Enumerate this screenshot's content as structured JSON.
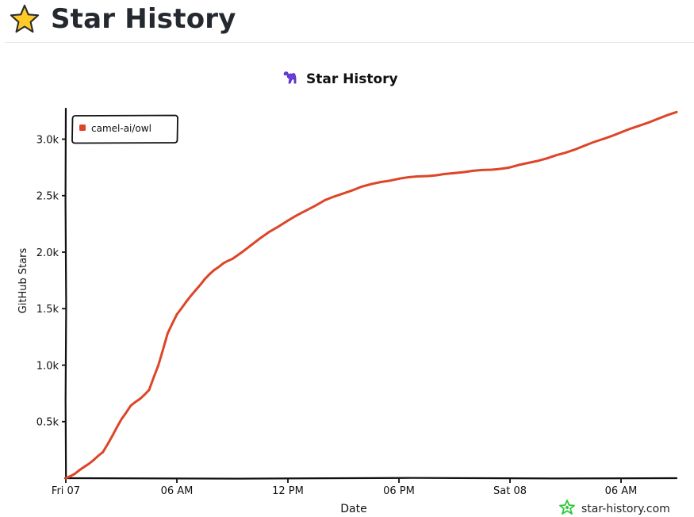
{
  "page": {
    "title": "Star History",
    "title_icon": "star-icon"
  },
  "chart_data": {
    "type": "line",
    "title": "Star History",
    "title_icon": "camel-icon",
    "xlabel": "Date",
    "ylabel": "GitHub Stars",
    "x_tick_labels": [
      "Fri 07",
      "06 AM",
      "12 PM",
      "06 PM",
      "Sat 08",
      "06 AM"
    ],
    "x_tick_hours": [
      0,
      6,
      12,
      18,
      24,
      30
    ],
    "x_range_hours": [
      0,
      33
    ],
    "y_tick_labels": [
      "0.5k",
      "1.0k",
      "1.5k",
      "2.0k",
      "2.5k",
      "3.0k"
    ],
    "y_tick_values": [
      500,
      1000,
      1500,
      2000,
      2500,
      3000
    ],
    "ylim": [
      0,
      3270
    ],
    "legend_position": "top-left",
    "grid": false,
    "series": [
      {
        "name": "camel-ai/owl",
        "color": "#dd4528",
        "x_hours": [
          0,
          0.5,
          1,
          1.5,
          2,
          2.5,
          3,
          3.5,
          4,
          4.5,
          5,
          5.5,
          6,
          6.5,
          7,
          7.5,
          8,
          8.5,
          9,
          10,
          11,
          12,
          13,
          14,
          15,
          16,
          17,
          18,
          19,
          20,
          21,
          22,
          23,
          24,
          25,
          26,
          27,
          28,
          29,
          30,
          31,
          32,
          33
        ],
        "values": [
          0,
          40,
          100,
          160,
          230,
          370,
          520,
          640,
          700,
          780,
          1000,
          1280,
          1450,
          1560,
          1660,
          1760,
          1840,
          1900,
          1940,
          2060,
          2180,
          2280,
          2370,
          2460,
          2520,
          2580,
          2620,
          2650,
          2670,
          2680,
          2700,
          2720,
          2730,
          2750,
          2790,
          2830,
          2880,
          2940,
          3000,
          3060,
          3120,
          3180,
          3240
        ]
      }
    ]
  },
  "watermark": {
    "text": "star-history.com",
    "icon": "star-history-logo-icon",
    "color": "#2dc937"
  }
}
